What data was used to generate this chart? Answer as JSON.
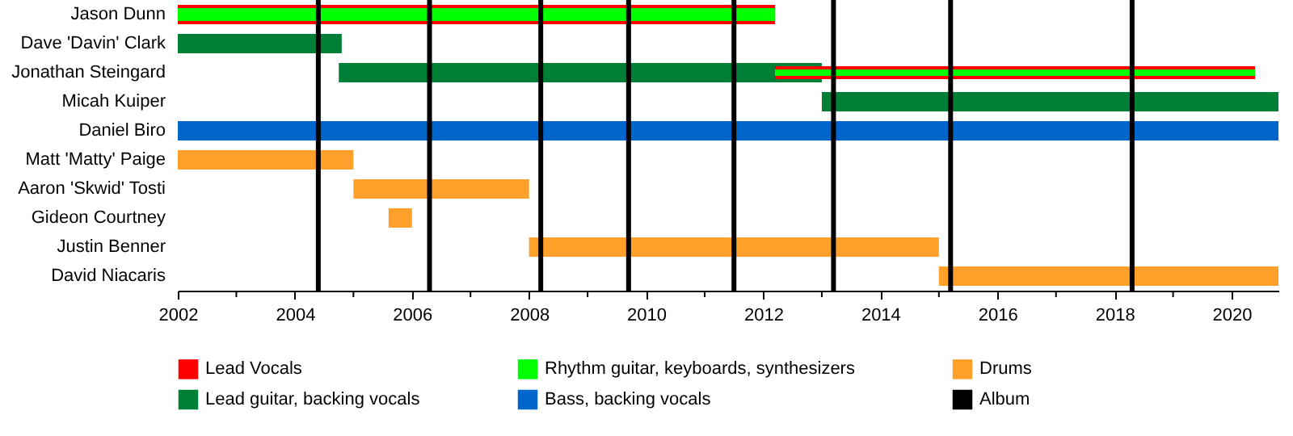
{
  "chart_data": {
    "type": "bar",
    "orientation": "horizontal",
    "categories": [
      "Jason Dunn",
      "Dave 'Davin' Clark",
      "Jonathan Steingard",
      "Micah Kuiper",
      "Daniel Biro",
      "Matt 'Matty' Paige",
      "Aaron 'Skwid' Tosti",
      "Gideon Courtney",
      "Justin Benner",
      "David Niacaris"
    ],
    "series": [
      {
        "name": "Lead Vocals",
        "color": "#ff0000",
        "base": [
          2002,
          null,
          2012.2,
          null,
          null,
          null,
          null,
          null,
          null,
          null
        ],
        "values": [
          10.2,
          null,
          8.2,
          null,
          null,
          null,
          null,
          null,
          null,
          null
        ]
      },
      {
        "name": "Rhythm guitar, keyboards, synthesizers",
        "color": "#00ff00",
        "base": [
          2002,
          null,
          2012.2,
          null,
          null,
          null,
          null,
          null,
          null,
          null
        ],
        "values": [
          10.2,
          null,
          8.2,
          null,
          null,
          null,
          null,
          null,
          null,
          null
        ]
      },
      {
        "name": "Drums",
        "color": "#ffa02a",
        "base": [
          null,
          null,
          null,
          null,
          null,
          2002,
          2005.0,
          2005.6,
          2008.0,
          2015.0
        ],
        "values": [
          null,
          null,
          null,
          null,
          null,
          3.0,
          3.0,
          0.4,
          7.0,
          5.8
        ]
      },
      {
        "name": "Lead guitar, backing vocals",
        "color": "#008036",
        "base": [
          null,
          2002,
          2004.75,
          2013.0,
          null,
          null,
          null,
          null,
          null,
          null
        ],
        "values": [
          null,
          2.8,
          8.25,
          7.8,
          null,
          null,
          null,
          null,
          null,
          null
        ]
      },
      {
        "name": "Bass, backing vocals",
        "color": "#0066cc",
        "base": [
          null,
          null,
          null,
          null,
          2002,
          null,
          null,
          null,
          null,
          null
        ],
        "values": [
          null,
          null,
          null,
          null,
          18.8,
          null,
          null,
          null,
          null,
          null
        ]
      }
    ],
    "ref_lines": [
      {
        "axis": "x",
        "value": 2004.4,
        "label": "Album",
        "color": "#000000"
      },
      {
        "axis": "x",
        "value": 2006.3,
        "color": "#000000"
      },
      {
        "axis": "x",
        "value": 2008.2,
        "color": "#000000"
      },
      {
        "axis": "x",
        "value": 2009.7,
        "color": "#000000"
      },
      {
        "axis": "x",
        "value": 2011.5,
        "color": "#000000"
      },
      {
        "axis": "x",
        "value": 2013.2,
        "color": "#000000"
      },
      {
        "axis": "x",
        "value": 2015.2,
        "color": "#000000"
      },
      {
        "axis": "x",
        "value": 2018.3,
        "color": "#000000"
      }
    ],
    "xlim": [
      2002,
      2020.8
    ],
    "xticks": [
      2002,
      {
        "value": 2003,
        "label": null
      },
      2004,
      {
        "value": 2005,
        "label": null
      },
      2006,
      {
        "value": 2007,
        "label": null
      },
      2008,
      {
        "value": 2009,
        "label": null
      },
      2010,
      {
        "value": 2011,
        "label": null
      },
      2012,
      {
        "value": 2013,
        "label": null
      },
      2014,
      {
        "value": 2015,
        "label": null
      },
      2016,
      {
        "value": 2017,
        "label": null
      },
      2018,
      {
        "value": 2019,
        "label": null
      },
      2020
    ],
    "grid": false,
    "legend": "bottom"
  }
}
